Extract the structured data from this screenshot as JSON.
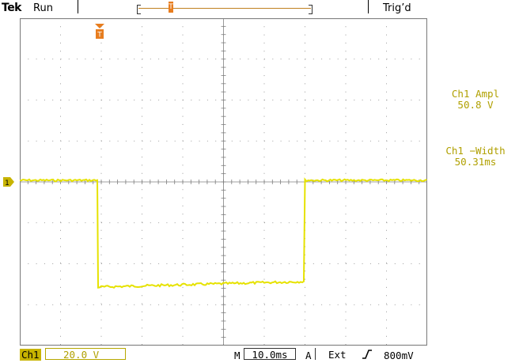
{
  "header": {
    "brand": "Tek",
    "acquisition_status": "Run",
    "trigger_status": "Trig’d",
    "record_marker_glyph": "T"
  },
  "trace": {
    "color": "#e6e200",
    "channel": "1",
    "trigger_marker_glyph": "T"
  },
  "measurements": [
    {
      "label": "Ch1 Ampl",
      "value": "50.8 V"
    },
    {
      "label": "Ch1 −Width",
      "value": "50.31ms"
    }
  ],
  "footer": {
    "channel_badge": "Ch1",
    "volts_per_div": "20.0 V",
    "timebase_prefix": "M",
    "timebase_value": "10.0ms",
    "trigger_mode": "A",
    "trigger_source": "Ext",
    "trigger_slope_icon": "rising-edge-icon",
    "trigger_level": "800mV"
  },
  "colors": {
    "trace": "#e6e200",
    "measurement_text": "#b0a000",
    "marker_orange": "#e87d1e",
    "graticule": "#808080"
  }
}
